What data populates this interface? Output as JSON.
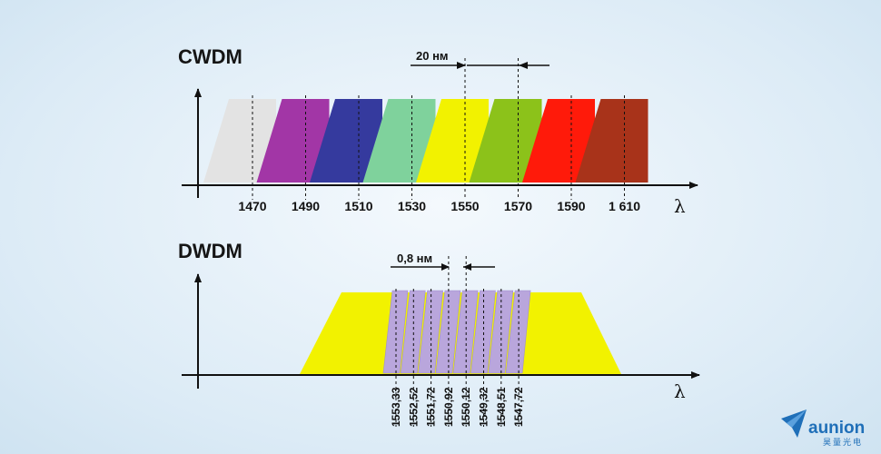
{
  "brand": {
    "logo_icon": "paper-plane-icon",
    "name": "aunion",
    "subtitle": "昊量光电",
    "color": "#1f6fb8"
  },
  "cwdm": {
    "title": "CWDM",
    "spacing_label": "20 нм",
    "axis_symbol": "λ",
    "channels": [
      {
        "label": "1470",
        "color": "#e3e3e3"
      },
      {
        "label": "1490",
        "color": "#a236a6"
      },
      {
        "label": "1510",
        "color": "#353a9e"
      },
      {
        "label": "1530",
        "color": "#7fd29c"
      },
      {
        "label": "1550",
        "color": "#f2f200"
      },
      {
        "label": "1570",
        "color": "#8cc21a"
      },
      {
        "label": "1590",
        "color": "#ff1a0a"
      },
      {
        "label": "1 610",
        "color": "#a8331a"
      }
    ]
  },
  "dwdm": {
    "title": "DWDM",
    "spacing_label": "0,8 нм",
    "axis_symbol": "λ",
    "band_color": "#f2f200",
    "channel_color": "#b9a6dc",
    "channels": [
      "1553,33",
      "1552,52",
      "1551,72",
      "1550,92",
      "1550,12",
      "1549,32",
      "1548,51",
      "1547,72"
    ]
  }
}
